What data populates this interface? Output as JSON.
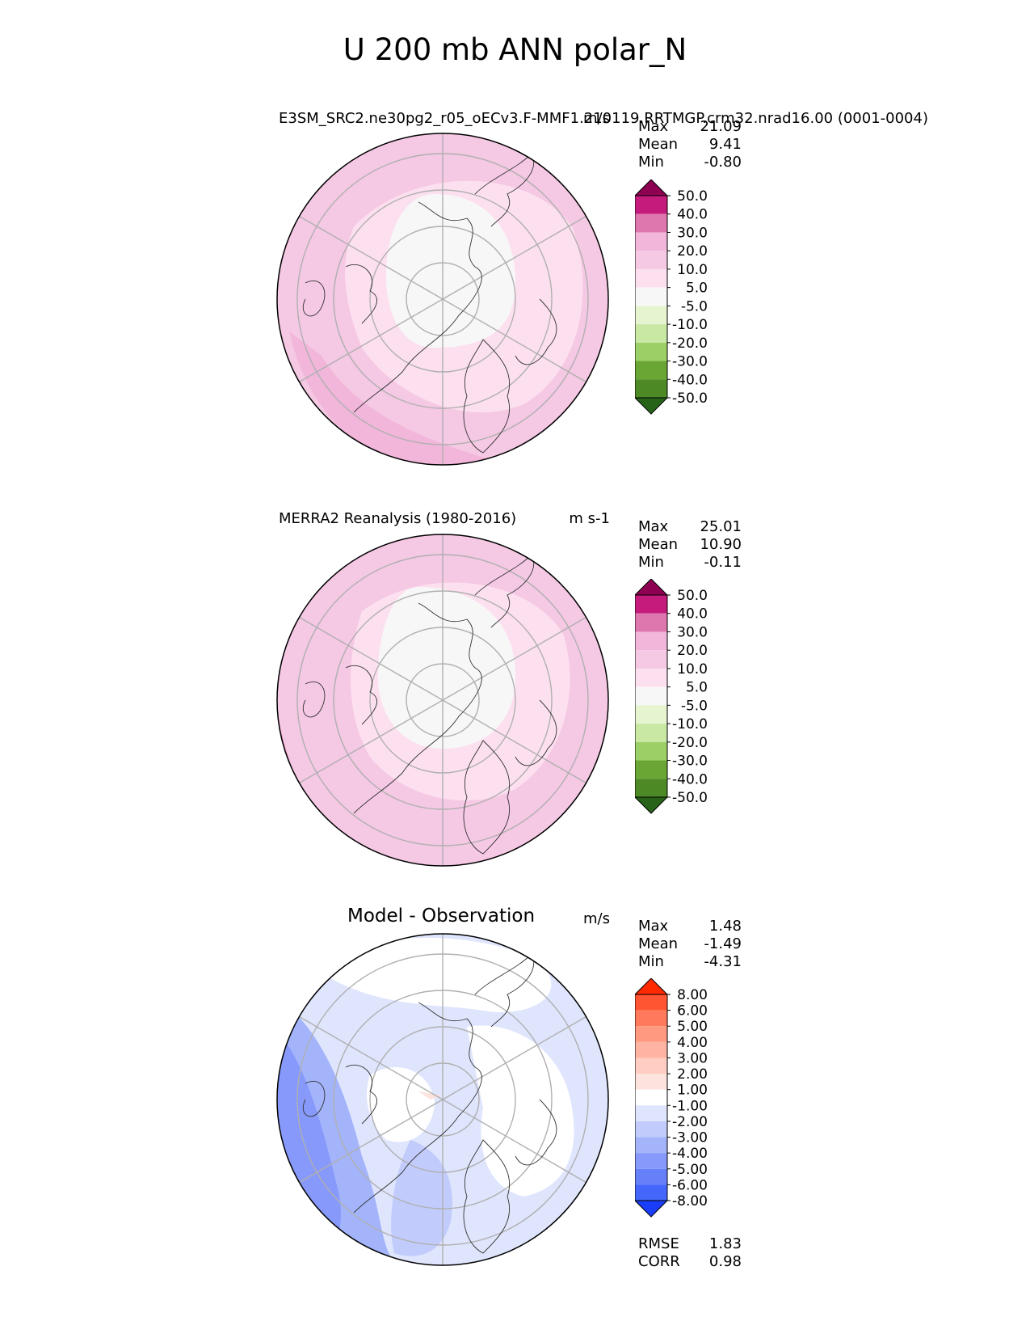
{
  "figure_title": "U 200 mb ANN polar_N",
  "panels": [
    {
      "title": "E3SM_SRC2.ne30pg2_r05_oECv3.F-MMF1.210119.RRTMGP.crm32.nrad16.00 (0001-0004)",
      "units": "m/s",
      "stats": [
        {
          "label": "Max",
          "value": "21.09"
        },
        {
          "label": "Mean",
          "value": "9.41"
        },
        {
          "label": "Min",
          "value": "-0.80"
        }
      ]
    },
    {
      "title": "MERRA2 Reanalysis (1980-2016)",
      "units": "m s-1",
      "stats": [
        {
          "label": "Max",
          "value": "25.01"
        },
        {
          "label": "Mean",
          "value": "10.90"
        },
        {
          "label": "Min",
          "value": "-0.11"
        }
      ]
    },
    {
      "title": "Model - Observation",
      "units": "m/s",
      "stats": [
        {
          "label": "Max",
          "value": "1.48"
        },
        {
          "label": "Mean",
          "value": "-1.49"
        },
        {
          "label": "Min",
          "value": "-4.31"
        }
      ],
      "extra_stats": [
        {
          "label": "RMSE",
          "value": "1.83"
        },
        {
          "label": "CORR",
          "value": "0.98"
        }
      ]
    }
  ],
  "chart_data": [
    {
      "type": "heatmap",
      "projection": "north polar stereographic",
      "title": "E3SM_SRC2.ne30pg2_r05_oECv3.F-MMF1.210119.RRTMGP.crm32.nrad16.00 (0001-0004)",
      "variable": "U 200 mb",
      "units": "m/s",
      "colorbar": {
        "levels": [
          "50.0",
          "40.0",
          "30.0",
          "20.0",
          "10.0",
          "5.0",
          "-5.0",
          "-10.0",
          "-20.0",
          "-30.0",
          "-40.0",
          "-50.0"
        ],
        "colors": [
          "#8e0152",
          "#c51b7d",
          "#de77ae",
          "#f1b6da",
          "#f5c8e3",
          "#fde0ef",
          "#f7f7f7",
          "#e6f5d0",
          "#c8e8a4",
          "#9ccf65",
          "#6aa634",
          "#4d8a25",
          "#276419"
        ],
        "extend": "both"
      },
      "stats": {
        "max": 21.09,
        "mean": 9.41,
        "min": -0.8
      }
    },
    {
      "type": "heatmap",
      "projection": "north polar stereographic",
      "title": "MERRA2 Reanalysis (1980-2016)",
      "variable": "U 200 mb",
      "units": "m s-1",
      "colorbar": {
        "levels": [
          "50.0",
          "40.0",
          "30.0",
          "20.0",
          "10.0",
          "5.0",
          "-5.0",
          "-10.0",
          "-20.0",
          "-30.0",
          "-40.0",
          "-50.0"
        ],
        "colors": [
          "#8e0152",
          "#c51b7d",
          "#de77ae",
          "#f1b6da",
          "#f5c8e3",
          "#fde0ef",
          "#f7f7f7",
          "#e6f5d0",
          "#c8e8a4",
          "#9ccf65",
          "#6aa634",
          "#4d8a25",
          "#276419"
        ],
        "extend": "both"
      },
      "stats": {
        "max": 25.01,
        "mean": 10.9,
        "min": -0.11
      }
    },
    {
      "type": "heatmap",
      "projection": "north polar stereographic",
      "title": "Model - Observation",
      "variable": "U 200 mb difference",
      "units": "m/s",
      "colorbar": {
        "levels": [
          "8.00",
          "6.00",
          "5.00",
          "4.00",
          "3.00",
          "2.00",
          "1.00",
          "-1.00",
          "-2.00",
          "-3.00",
          "-4.00",
          "-5.00",
          "-6.00",
          "-8.00"
        ],
        "colors": [
          "#ff2a00",
          "#ff5533",
          "#ff7a5c",
          "#ff9980",
          "#ffb3a3",
          "#ffcdc2",
          "#fde3dd",
          "#ffffff",
          "#dfe5fd",
          "#c2ccfc",
          "#a3b4fb",
          "#8799fa",
          "#6680fa",
          "#4466fa",
          "#1a3dfa"
        ],
        "extend": "both"
      },
      "stats": {
        "max": 1.48,
        "mean": -1.49,
        "min": -4.31,
        "rmse": 1.83,
        "corr": 0.98
      }
    }
  ]
}
